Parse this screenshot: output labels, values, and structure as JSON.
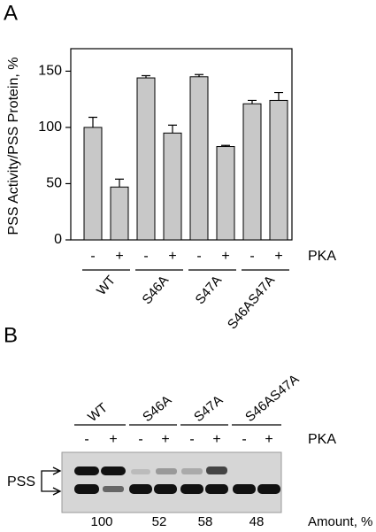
{
  "chart_data": {
    "type": "bar",
    "panel_label": "A",
    "ylabel": "PSS Activity/PSS Protein, %",
    "categories": [
      "-",
      "+",
      "-",
      "+",
      "-",
      "+",
      "-",
      "+"
    ],
    "groups": [
      "WT",
      "S46A",
      "S47A",
      "S46AS47A"
    ],
    "treatment_label": "PKA",
    "series": [
      {
        "color": "#c8c8c8",
        "values": [
          100,
          47,
          144,
          95,
          145,
          83,
          121,
          124
        ],
        "errors": [
          9,
          7,
          2,
          7,
          2,
          1,
          3,
          7
        ]
      }
    ],
    "ylim": [
      0,
      170
    ],
    "yticks": [
      0,
      50,
      100,
      150
    ]
  },
  "blot": {
    "panel_label": "B",
    "groups": [
      "WT",
      "S46A",
      "S47A",
      "S46AS47A"
    ],
    "lanes": [
      "-",
      "+",
      "-",
      "+",
      "-",
      "+",
      "-",
      "+"
    ],
    "treatment_label": "PKA",
    "band_label": "PSS",
    "amounts": [
      100,
      52,
      58,
      48
    ],
    "amount_label": "Amount, %"
  }
}
